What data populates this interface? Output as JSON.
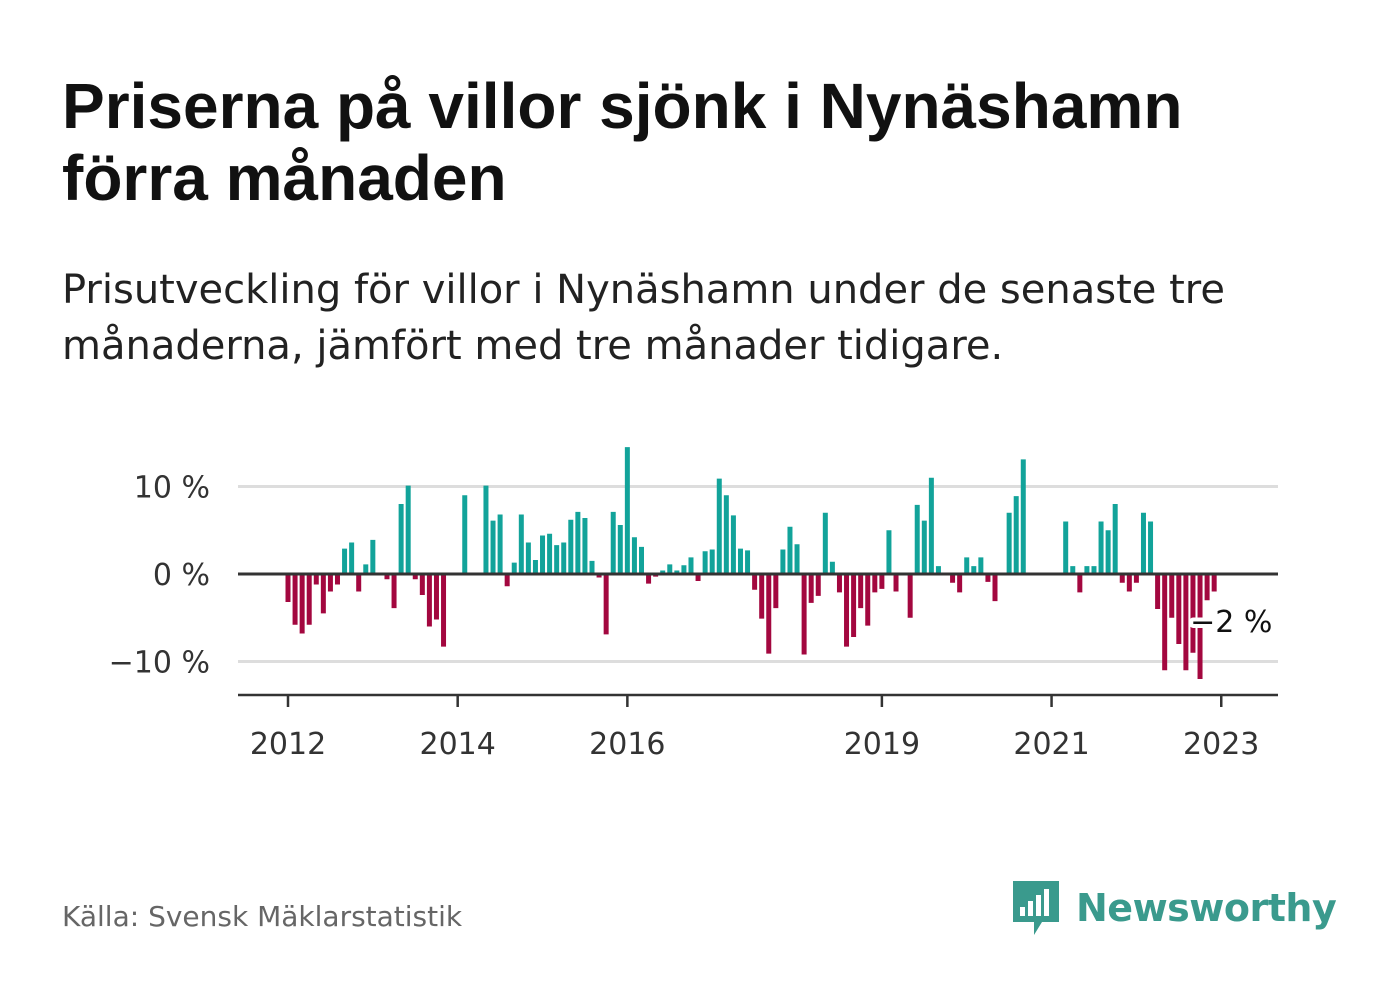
{
  "title": "Priserna på villor sjönk i Nynäshamn förra månaden",
  "subtitle": "Prisutveckling för villor i Nynäshamn under de senaste tre månaderna, jämfört med tre månader tidigare.",
  "source": "Källa: Svensk Mäklarstatistik",
  "brand": "Newsworthy",
  "colors": {
    "positive": "#12a39a",
    "negative": "#a3073f",
    "brand": "#3a9a8d",
    "grid": "#dddddd",
    "axis": "#333333"
  },
  "chart_data": {
    "type": "bar",
    "x_unit": "month",
    "start_month": "2012-01",
    "y_tick_labels": [
      "10 %",
      "0 %",
      "−10 %"
    ],
    "y_ticks": [
      10,
      0,
      -10
    ],
    "ylim": [
      -14.1,
      10
    ],
    "x_tick_labels": [
      "2012",
      "2014",
      "2016",
      "2019",
      "2021",
      "2023"
    ],
    "x_tick_months": [
      "2012-01",
      "2014-01",
      "2016-01",
      "2019-01",
      "2021-01",
      "2023-01"
    ],
    "annotation": {
      "label": "−2 %",
      "month": "2023-01",
      "value": -2
    },
    "values": [
      -3.2,
      -5.8,
      -6.8,
      -5.8,
      -1.2,
      -4.5,
      -2.0,
      -1.2,
      2.9,
      3.6,
      -2.0,
      1.1,
      3.9,
      null,
      -0.6,
      -3.9,
      8.0,
      10.1,
      -0.6,
      -2.4,
      -6.0,
      -5.2,
      -8.3,
      null,
      null,
      9.0,
      null,
      null,
      10.1,
      6.1,
      6.8,
      -1.4,
      1.3,
      6.8,
      3.6,
      1.6,
      4.4,
      4.6,
      3.3,
      3.6,
      6.2,
      7.1,
      6.4,
      1.5,
      -0.4,
      -6.9,
      7.1,
      5.6,
      14.5,
      4.2,
      3.1,
      -1.1,
      -0.3,
      0.4,
      1.1,
      0.4,
      1.0,
      1.9,
      -0.8,
      2.6,
      2.8,
      10.9,
      9.0,
      6.7,
      2.9,
      2.7,
      -1.8,
      -5.1,
      -9.1,
      -3.9,
      2.8,
      5.4,
      3.4,
      -9.2,
      -3.3,
      -2.5,
      7.0,
      1.4,
      -2.1,
      -8.3,
      -7.2,
      -3.9,
      -5.9,
      -2.1,
      -1.7,
      5.0,
      -2.0,
      null,
      -5.0,
      7.9,
      6.1,
      11.0,
      0.9,
      null,
      -1.0,
      -2.1,
      1.9,
      0.9,
      1.9,
      -0.9,
      -3.1,
      null,
      7.0,
      8.9,
      13.1,
      null,
      null,
      null,
      null,
      null,
      6.0,
      0.9,
      -2.1,
      0.9,
      0.9,
      6.0,
      5.0,
      8.0,
      -1.0,
      -2.0,
      -1.0,
      7.0,
      6.0,
      -4.0,
      -11.0,
      -5.0,
      -8.0,
      -11.0,
      -9.0,
      -12.0,
      -3.0,
      -2.0
    ]
  }
}
